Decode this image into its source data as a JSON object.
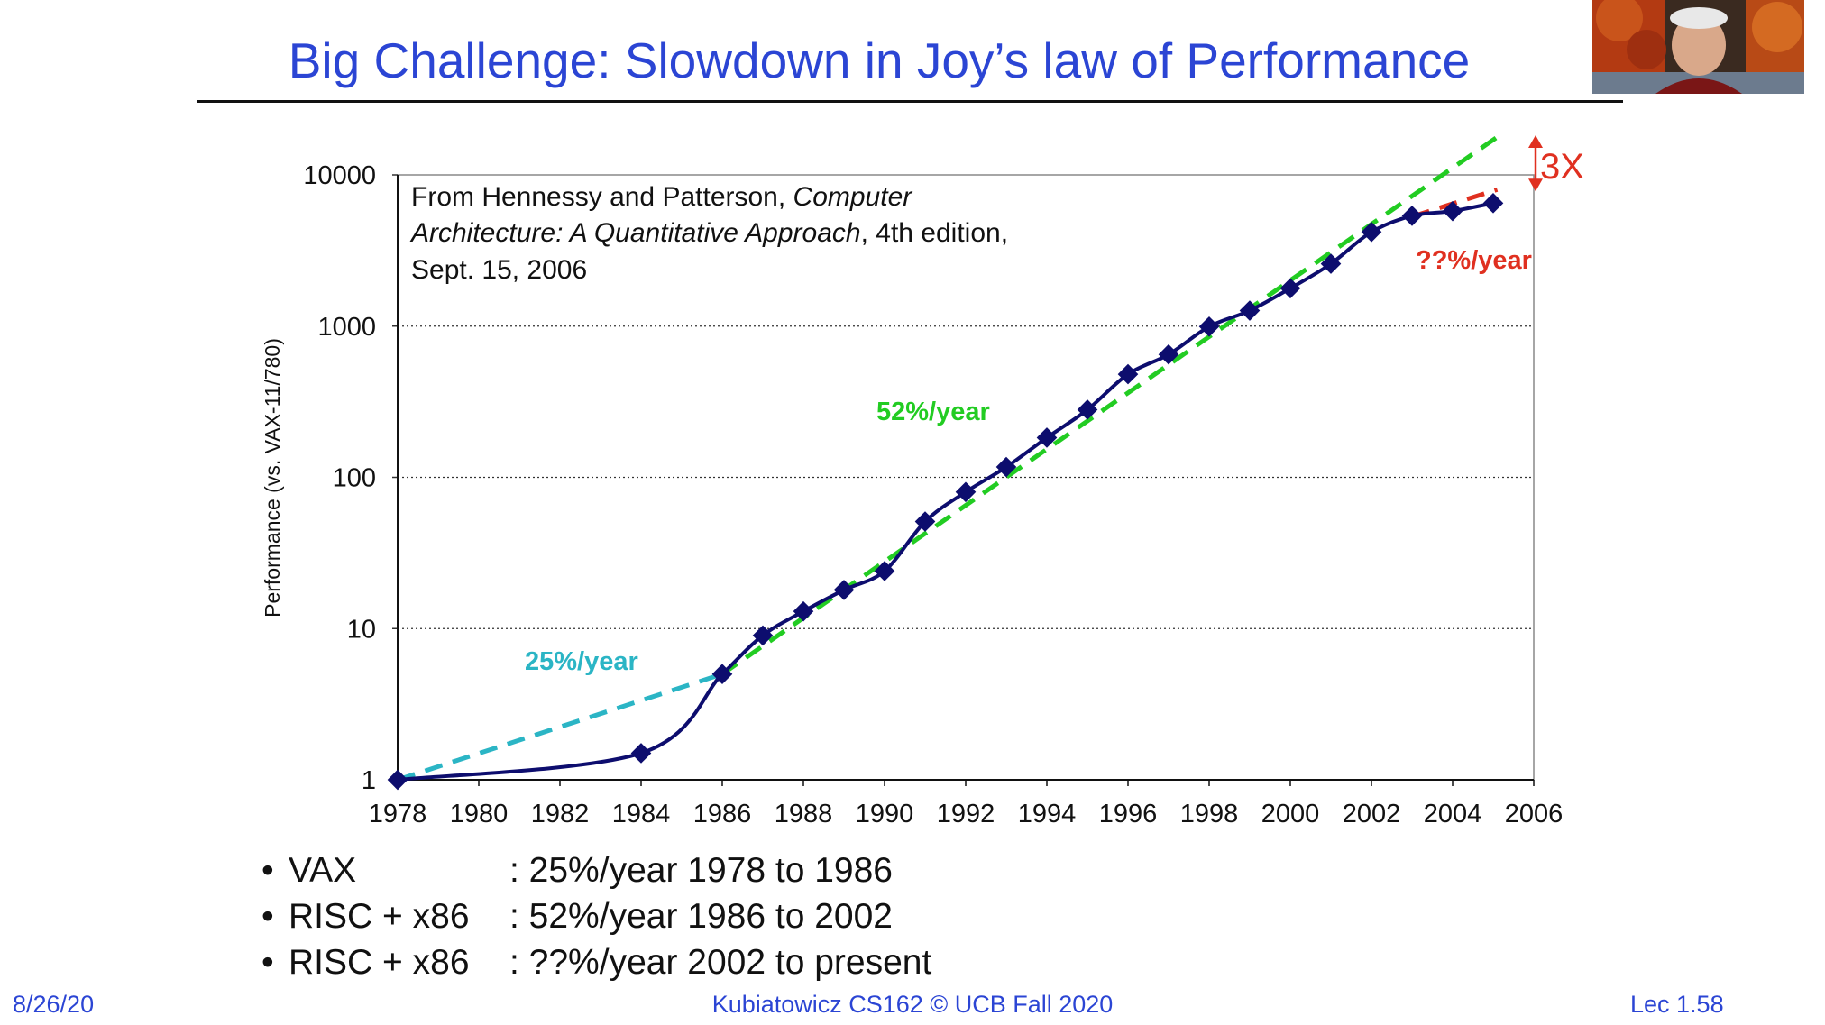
{
  "slide": {
    "title": "Big Challenge: Slowdown in Joy’s law of Performance",
    "title_color": "#2b45d4",
    "footer": {
      "date": "8/26/20",
      "course": "Kubiatowicz CS162 © UCB Fall 2020",
      "page": "Lec 1.58"
    },
    "bullets": [
      {
        "label": "VAX",
        "text": ": 25%/year 1978 to 1986"
      },
      {
        "label": "RISC + x86",
        "text": ": 52%/year 1986 to 2002"
      },
      {
        "label": "RISC + x86",
        "text": ": ??%/year 2002 to present"
      }
    ],
    "video": {
      "icon": "speaker-video-icon"
    }
  },
  "chart_data": {
    "type": "line",
    "title": "",
    "xlabel": "",
    "ylabel": "Performance (vs. VAX-11/780)",
    "yscale": "log",
    "xlim": [
      1978,
      2006
    ],
    "ylim": [
      1,
      10000
    ],
    "grid": "horizontal dotted",
    "x_ticks": [
      "1978",
      "1980",
      "1982",
      "1984",
      "1986",
      "1988",
      "1990",
      "1992",
      "1994",
      "1996",
      "1998",
      "2000",
      "2002",
      "2004",
      "2006"
    ],
    "y_ticks": [
      "1",
      "10",
      "100",
      "1000",
      "10000"
    ],
    "citation": {
      "line1_plain": "From Hennessy and Patterson, ",
      "line1_italic": "Computer",
      "line2_italic": "Architecture: A Quantitative Approach",
      "line2_plain": ", 4th edition,",
      "line3": "Sept. 15, 2006"
    },
    "series": [
      {
        "name": "Performance",
        "color": "#0d0d6e",
        "x": [
          1978,
          1984,
          1986,
          1987,
          1988,
          1989,
          1990,
          1991,
          1992,
          1993,
          1994,
          1995,
          1996,
          1997,
          1998,
          1999,
          2000,
          2001,
          2002,
          2003,
          2004,
          2005
        ],
        "y": [
          1,
          1.5,
          5,
          9,
          13,
          18,
          24,
          51,
          80,
          117,
          183,
          280,
          481,
          649,
          993,
          1267,
          1779,
          2584,
          4195,
          5364,
          5764,
          6505
        ]
      }
    ],
    "trendlines": [
      {
        "name": "25%/year",
        "label": "25%/year",
        "color": "#2bb5c5",
        "x": [
          1978,
          1986
        ],
        "y": [
          1,
          5
        ]
      },
      {
        "name": "52%/year",
        "label": "52%/year",
        "color": "#22cc22",
        "x": [
          1986,
          2005.1
        ],
        "y": [
          5,
          17800
        ]
      },
      {
        "name": "??%/year",
        "label": "??%/year",
        "color": "#e03020",
        "x": [
          2003,
          2005.1
        ],
        "y": [
          5300,
          8000
        ]
      }
    ],
    "annotation_3x": {
      "text": "3X",
      "color": "#e03020",
      "y_top": 17800,
      "y_bottom": 8000
    }
  }
}
